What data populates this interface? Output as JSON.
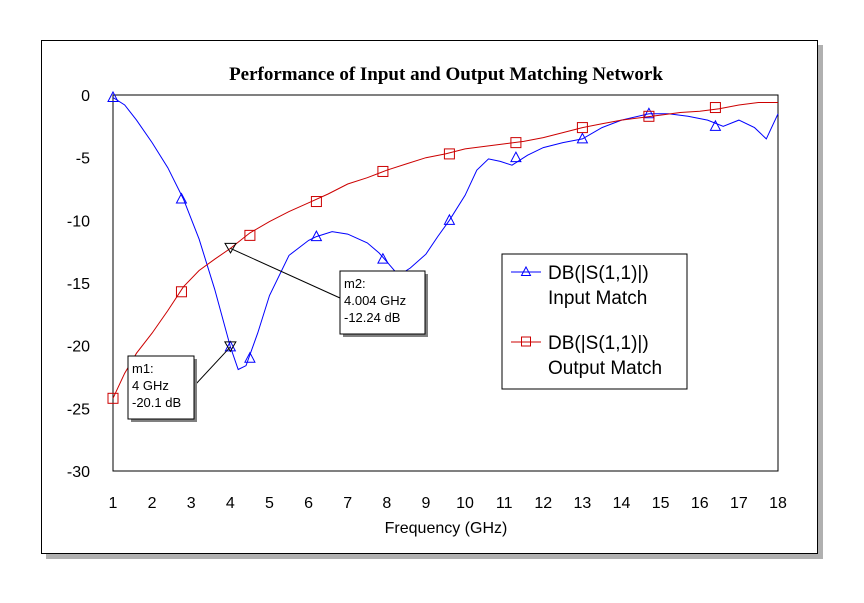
{
  "chart_data": {
    "type": "line",
    "title": "Performance of Input and Output Matching Network",
    "xlabel": "Frequency (GHz)",
    "ylabel": "",
    "xlim": [
      1,
      18
    ],
    "ylim": [
      -30,
      0
    ],
    "x_ticks": [
      1,
      2,
      3,
      4,
      5,
      6,
      7,
      8,
      9,
      10,
      11,
      12,
      13,
      14,
      15,
      16,
      17,
      18
    ],
    "y_ticks": [
      0,
      -5,
      -10,
      -15,
      -20,
      -25,
      -30
    ],
    "grid": false,
    "legend_position": "right",
    "series": [
      {
        "name": "DB(|S(1,1)|)",
        "subname": "Input Match",
        "color": "#0000ff",
        "marker": "triangle-up",
        "x": [
          1.0,
          1.3,
          1.6,
          2.0,
          2.4,
          2.8,
          3.2,
          3.6,
          4.0,
          4.2,
          4.4,
          4.7,
          5.0,
          5.5,
          6.0,
          6.2,
          6.6,
          7.0,
          7.5,
          7.8,
          8.0,
          8.3,
          8.6,
          9.0,
          9.3,
          9.6,
          10.0,
          10.3,
          10.6,
          10.9,
          11.2,
          11.6,
          12.0,
          12.5,
          13.0,
          13.5,
          14.0,
          14.7,
          15.2,
          15.7,
          16.2,
          16.6,
          17.0,
          17.4,
          17.7,
          18.0
        ],
        "y": [
          -0.2,
          -0.8,
          -2.0,
          -3.8,
          -5.8,
          -8.3,
          -11.5,
          -15.5,
          -20.1,
          -21.9,
          -21.6,
          -19.0,
          -16.0,
          -12.8,
          -11.6,
          -11.3,
          -10.9,
          -11.1,
          -11.8,
          -12.6,
          -13.3,
          -14.4,
          -13.8,
          -12.7,
          -11.3,
          -10.0,
          -8.0,
          -6.0,
          -5.1,
          -5.3,
          -5.6,
          -4.8,
          -4.2,
          -3.8,
          -3.5,
          -2.6,
          -2.0,
          -1.5,
          -1.5,
          -1.7,
          -2.0,
          -2.5,
          -2.0,
          -2.6,
          -3.5,
          -1.5
        ],
        "marker_x": [
          1.0,
          2.75,
          4.0,
          4.5,
          6.2,
          7.9,
          9.6,
          11.3,
          13.0,
          14.7,
          16.4
        ],
        "marker_y": [
          -0.2,
          -8.3,
          -20.1,
          -21.0,
          -11.3,
          -13.1,
          -10.0,
          -5.0,
          -3.5,
          -1.5,
          -2.5
        ]
      },
      {
        "name": "DB(|S(1,1)|)",
        "subname": "Output Match",
        "color": "#cc0000",
        "marker": "square",
        "x": [
          1.0,
          1.3,
          1.6,
          2.0,
          2.4,
          2.8,
          3.2,
          3.6,
          4.0,
          4.5,
          5.0,
          5.5,
          6.0,
          6.5,
          7.0,
          7.5,
          8.0,
          8.5,
          9.0,
          9.5,
          10.0,
          10.5,
          11.0,
          11.5,
          12.0,
          12.5,
          13.0,
          13.5,
          14.0,
          14.5,
          15.0,
          15.5,
          16.0,
          16.5,
          17.0,
          17.5,
          18.0
        ],
        "y": [
          -24.2,
          -22.2,
          -20.6,
          -19.0,
          -17.2,
          -15.3,
          -14.0,
          -13.1,
          -12.24,
          -11.0,
          -10.1,
          -9.3,
          -8.6,
          -7.9,
          -7.1,
          -6.6,
          -6.0,
          -5.5,
          -5.0,
          -4.7,
          -4.3,
          -4.1,
          -3.9,
          -3.7,
          -3.4,
          -3.0,
          -2.6,
          -2.3,
          -2.0,
          -1.8,
          -1.6,
          -1.4,
          -1.3,
          -1.1,
          -0.8,
          -0.6,
          -0.6
        ],
        "marker_x": [
          1.0,
          2.75,
          4.5,
          6.2,
          7.9,
          9.6,
          11.3,
          13.0,
          14.7,
          16.4
        ],
        "marker_y": [
          -24.2,
          -15.7,
          -11.2,
          -8.5,
          -6.1,
          -4.7,
          -3.8,
          -2.6,
          -1.7,
          -1.0
        ]
      }
    ],
    "markers": [
      {
        "id": "m1",
        "label": "m1:",
        "freq": "4 GHz",
        "value": "-20.1 dB",
        "x": 4.0,
        "y": -20.1,
        "series": 0
      },
      {
        "id": "m2",
        "label": "m2:",
        "freq": "4.004 GHz",
        "value": "-12.24 dB",
        "x": 4.004,
        "y": -12.24,
        "series": 1
      }
    ]
  }
}
